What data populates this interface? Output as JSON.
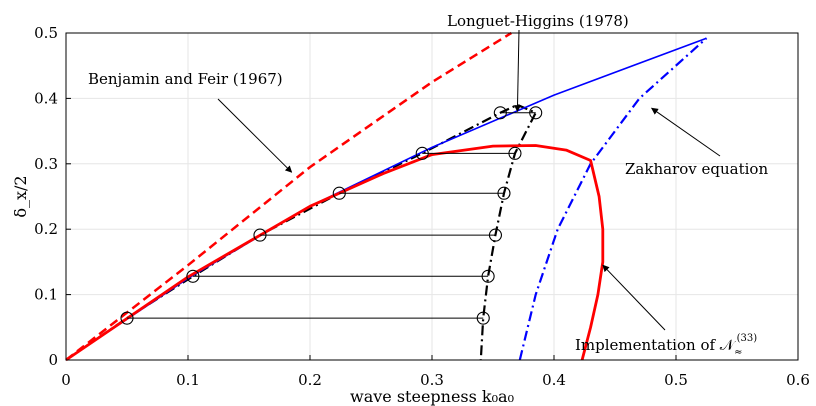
{
  "chart_data": {
    "type": "line",
    "xlabel": "wave steepness k₀a₀",
    "ylabel": "δ_x/2",
    "xlim": [
      0,
      0.6
    ],
    "ylim": [
      0,
      0.5
    ],
    "x_ticks": [
      "0",
      "0.1",
      "0.2",
      "0.3",
      "0.4",
      "0.5",
      "0.6"
    ],
    "y_ticks": [
      "0",
      "0.1",
      "0.2",
      "0.3",
      "0.4",
      "0.5"
    ],
    "grid": true,
    "series": [
      {
        "name": "Benjamin and Feir (1967)",
        "style": "dashed",
        "color": "#ff0000",
        "points": [
          [
            0,
            0
          ],
          [
            0.1,
            0.145
          ],
          [
            0.2,
            0.295
          ],
          [
            0.3,
            0.425
          ],
          [
            0.365,
            0.5
          ]
        ]
      },
      {
        "name": "Longuet-Higgins (1978)",
        "style": "dash-dot",
        "color": "#000000",
        "points": [
          [
            0,
            0
          ],
          [
            0.05,
            0.064
          ],
          [
            0.104,
            0.128
          ],
          [
            0.159,
            0.191
          ],
          [
            0.224,
            0.255
          ],
          [
            0.292,
            0.316
          ],
          [
            0.356,
            0.378
          ],
          [
            0.37,
            0.39
          ],
          [
            0.385,
            0.378
          ],
          [
            0.368,
            0.316
          ],
          [
            0.359,
            0.255
          ],
          [
            0.352,
            0.191
          ],
          [
            0.346,
            0.128
          ],
          [
            0.342,
            0.064
          ],
          [
            0.34,
            0
          ]
        ]
      },
      {
        "name": "Zakharov equation",
        "style": "solid",
        "color": "#0000ff",
        "points": [
          [
            0,
            0
          ],
          [
            0.1,
            0.125
          ],
          [
            0.2,
            0.235
          ],
          [
            0.3,
            0.325
          ],
          [
            0.4,
            0.405
          ],
          [
            0.525,
            0.492
          ]
        ]
      },
      {
        "name": "Zakharov equation",
        "style": "dash-dot",
        "color": "#0000ff",
        "points": [
          [
            0.372,
            0
          ],
          [
            0.385,
            0.1
          ],
          [
            0.403,
            0.2
          ],
          [
            0.43,
            0.3
          ],
          [
            0.47,
            0.4
          ],
          [
            0.525,
            0.492
          ]
        ]
      },
      {
        "name": "Implementation of N≈^(33)",
        "style": "solid",
        "color": "#ff0000",
        "points": [
          [
            0,
            0
          ],
          [
            0.1,
            0.127
          ],
          [
            0.2,
            0.235
          ],
          [
            0.26,
            0.285
          ],
          [
            0.3,
            0.314
          ],
          [
            0.35,
            0.327
          ],
          [
            0.385,
            0.328
          ],
          [
            0.41,
            0.321
          ],
          [
            0.43,
            0.305
          ],
          [
            0.437,
            0.25
          ],
          [
            0.44,
            0.2
          ],
          [
            0.44,
            0.15
          ],
          [
            0.436,
            0.1
          ],
          [
            0.43,
            0.05
          ],
          [
            0.423,
            0
          ]
        ]
      }
    ],
    "markers": [
      [
        0.05,
        0.064
      ],
      [
        0.104,
        0.128
      ],
      [
        0.159,
        0.191
      ],
      [
        0.224,
        0.255
      ],
      [
        0.292,
        0.316
      ],
      [
        0.356,
        0.378
      ],
      [
        0.342,
        0.064
      ],
      [
        0.346,
        0.128
      ],
      [
        0.352,
        0.191
      ],
      [
        0.359,
        0.255
      ],
      [
        0.368,
        0.316
      ],
      [
        0.385,
        0.378
      ]
    ],
    "tie_lines": [
      [
        0.05,
        0.342,
        0.064
      ],
      [
        0.104,
        0.346,
        0.128
      ],
      [
        0.159,
        0.352,
        0.191
      ],
      [
        0.224,
        0.359,
        0.255
      ],
      [
        0.292,
        0.368,
        0.316
      ],
      [
        0.356,
        0.385,
        0.378
      ]
    ],
    "annotations": [
      {
        "text": "Longuet-Higgins (1978)",
        "points_to": [
          0.37,
          0.38
        ]
      },
      {
        "text": "Benjamin and Feir (1967)",
        "points_to": [
          0.185,
          0.287
        ]
      },
      {
        "text": "Zakharov equation",
        "points_to": [
          0.48,
          0.385
        ]
      },
      {
        "text": "Implementation of 𝒩",
        "sub": "≈",
        "sup": "(33)",
        "points_to": [
          0.44,
          0.145
        ]
      }
    ]
  }
}
